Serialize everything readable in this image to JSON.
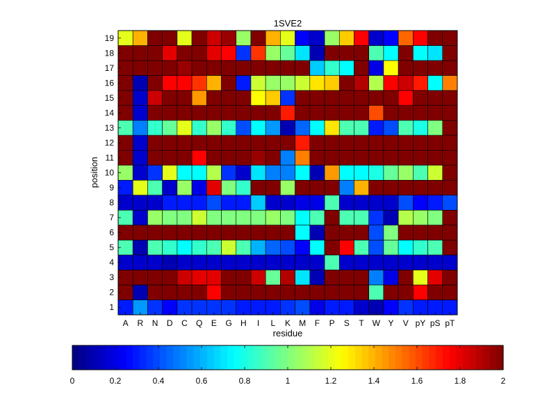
{
  "chart_data": {
    "type": "heatmap",
    "title": "1SVE2",
    "xlabel": "residue",
    "ylabel": "position",
    "x_categories": [
      "A",
      "R",
      "N",
      "D",
      "C",
      "Q",
      "E",
      "G",
      "H",
      "I",
      "L",
      "K",
      "M",
      "F",
      "P",
      "S",
      "T",
      "W",
      "Y",
      "V",
      "pY",
      "pS",
      "pT"
    ],
    "y_categories": [
      "1",
      "2",
      "3",
      "4",
      "5",
      "6",
      "7",
      "8",
      "9",
      "10",
      "11",
      "12",
      "13",
      "14",
      "15",
      "16",
      "17",
      "18",
      "19"
    ],
    "colormap": "jet",
    "clim": [
      0,
      2
    ],
    "colorbar": {
      "location": "bottom",
      "tick_labels": [
        "0",
        "0.2",
        "0.4",
        "0.6",
        "0.8",
        "1",
        "1.2",
        "1.4",
        "1.6",
        "1.8",
        "2"
      ]
    },
    "values": [
      [
        0.3,
        0.55,
        0.35,
        0.25,
        0.35,
        0.35,
        0.35,
        0.35,
        0.3,
        0.3,
        0.3,
        0.35,
        0.4,
        0.2,
        0.3,
        0.3,
        0.15,
        0.1,
        0.25,
        0.35,
        0.3,
        0.3,
        0.3
      ],
      [
        2,
        0.1,
        2,
        2,
        2,
        2,
        1.75,
        2,
        2,
        2,
        2,
        2,
        2,
        2,
        2,
        2,
        2,
        0.9,
        2,
        2,
        1.75,
        2,
        2
      ],
      [
        2,
        2,
        2,
        2,
        1.85,
        1.8,
        1.8,
        2,
        2,
        1.85,
        0.95,
        1.9,
        0.7,
        0.1,
        2,
        2,
        2,
        0.5,
        0.2,
        2,
        1.2,
        1.8,
        2
      ],
      [
        0.15,
        0.15,
        0.15,
        0.1,
        0.15,
        0.15,
        0.15,
        0.15,
        0.15,
        0.15,
        0.15,
        0.15,
        0.15,
        0.15,
        0.9,
        0.15,
        0.15,
        0.15,
        0.15,
        0.15,
        0.15,
        0.15,
        0.15
      ],
      [
        0.9,
        0.1,
        0.9,
        0.85,
        0.75,
        0.85,
        0.9,
        1.15,
        0.9,
        0.6,
        0.45,
        0.4,
        0.25,
        0.75,
        2,
        1.75,
        0.9,
        0.4,
        0.95,
        0.75,
        0.85,
        0.9,
        2
      ],
      [
        2,
        2,
        2,
        2,
        2,
        2,
        2,
        2,
        2,
        2,
        2,
        2,
        0.75,
        0.1,
        2,
        2,
        2,
        0.4,
        1,
        2,
        2,
        2,
        2
      ],
      [
        0.9,
        0.15,
        1.05,
        1,
        1,
        1.15,
        1,
        1,
        1,
        1,
        1.05,
        1,
        0.75,
        0.9,
        2,
        0.9,
        0.9,
        0.35,
        0.1,
        1.1,
        1.05,
        1,
        2
      ],
      [
        0.15,
        0.15,
        0.15,
        0.3,
        0.3,
        0.3,
        0.4,
        0.3,
        0.3,
        0.65,
        0.15,
        0.15,
        0.2,
        0.2,
        0.9,
        0.15,
        0.15,
        0.15,
        0.15,
        0.4,
        0.25,
        0.3,
        0.4
      ],
      [
        0.3,
        1.2,
        0.9,
        0.15,
        1.05,
        0.2,
        1.8,
        1,
        0.85,
        2,
        2,
        1.05,
        2,
        2,
        2,
        0.5,
        1.4,
        2,
        2,
        2,
        2,
        2,
        2
      ],
      [
        1.05,
        0.15,
        0.35,
        1.2,
        0.75,
        0.75,
        1.1,
        0.35,
        0.15,
        0.7,
        0.5,
        0.5,
        0.75,
        0.1,
        1.45,
        0.75,
        0.75,
        0.8,
        0.95,
        1.05,
        0.9,
        1.15,
        2
      ],
      [
        2,
        0.15,
        2,
        2,
        2,
        1.75,
        2,
        2,
        2,
        1.95,
        2,
        0.5,
        1.5,
        2,
        2,
        2,
        2,
        2,
        2,
        2,
        2,
        2,
        2
      ],
      [
        2,
        0.15,
        2,
        2,
        2,
        2,
        2,
        2,
        2,
        2,
        2,
        2,
        1.7,
        2,
        2,
        2,
        2,
        2,
        2,
        2,
        2,
        2,
        2
      ],
      [
        0.9,
        0.5,
        0.85,
        0.95,
        1.2,
        0.85,
        1.05,
        0.85,
        0.4,
        0.75,
        0.55,
        0.1,
        0.45,
        0.75,
        1.3,
        0.9,
        0.9,
        0.3,
        0.4,
        0.9,
        0.8,
        1,
        2
      ],
      [
        2,
        0.15,
        2,
        2,
        2,
        2,
        2,
        2,
        2,
        2,
        2,
        1.7,
        2,
        2,
        2,
        2,
        2,
        1.6,
        2,
        2,
        2,
        2,
        2
      ],
      [
        2,
        0.15,
        1.85,
        2,
        2,
        1.45,
        2,
        2,
        2,
        1.25,
        1.35,
        0.35,
        2,
        2,
        2,
        2,
        2,
        2,
        2,
        1.75,
        2,
        2,
        2
      ],
      [
        2,
        0.1,
        2,
        1.75,
        1.75,
        1.65,
        1.4,
        2,
        0.3,
        1.15,
        1.05,
        1.05,
        1.15,
        1.3,
        1.35,
        2,
        1.9,
        1.1,
        1.75,
        1.85,
        1.7,
        0.75,
        1.5
      ],
      [
        2,
        2,
        2,
        2,
        1.95,
        2,
        2,
        2,
        2,
        2,
        2,
        2,
        2,
        0.65,
        0.85,
        0.75,
        2,
        0.2,
        1.25,
        2,
        2,
        2,
        2
      ],
      [
        2,
        2,
        2,
        1.8,
        2,
        2,
        1.8,
        1.75,
        0.35,
        1.65,
        1.05,
        0.95,
        0.7,
        0.1,
        2,
        2,
        2,
        0.9,
        0.75,
        2,
        0.75,
        0.7,
        2
      ],
      [
        1.2,
        1.4,
        2,
        2,
        1.2,
        2,
        1.85,
        1.95,
        1.05,
        2,
        1.4,
        1.2,
        0.25,
        0.15,
        1.05,
        1.35,
        1.75,
        0.15,
        0.25,
        1.55,
        1.75,
        2,
        2
      ]
    ]
  }
}
